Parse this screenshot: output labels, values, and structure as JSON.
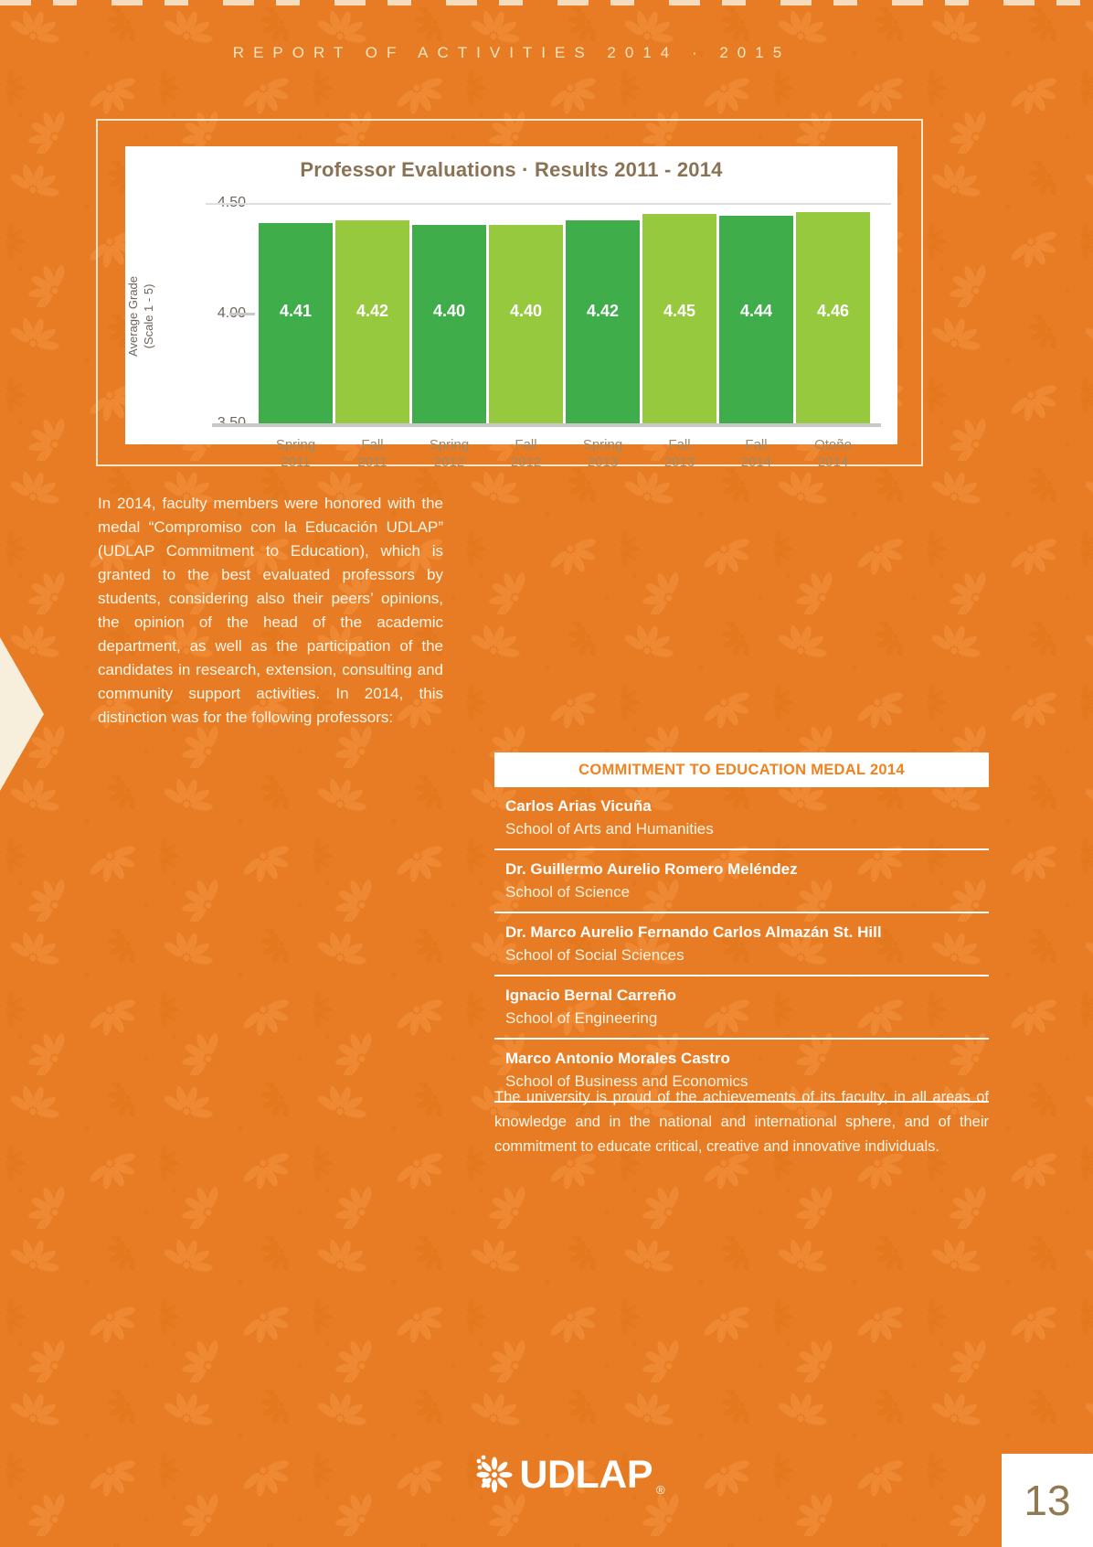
{
  "page": {
    "header": "REPORT OF ACTIVITIES 2014 · 2015",
    "page_number": "13"
  },
  "chart_data": {
    "type": "bar",
    "title": "Professor Evaluations · Results 2011 - 2014",
    "ylabel": [
      "Average Grade",
      "(Scale 1 - 5)"
    ],
    "ylim": [
      3.5,
      4.5
    ],
    "yticks": [
      4.5,
      4.0,
      3.5
    ],
    "ytick_labels": [
      "4.50",
      "4.00",
      "3.50"
    ],
    "grid": "top gridline at 4.50, short tick at 4.00, baseline at 3.50",
    "legend_position": "none",
    "categories": [
      {
        "season": "Spring",
        "year": "2011"
      },
      {
        "season": "Fall",
        "year": "2011"
      },
      {
        "season": "Spring",
        "year": "2012"
      },
      {
        "season": "Fall",
        "year": "2012"
      },
      {
        "season": "Spring",
        "year": "2013"
      },
      {
        "season": "Fall",
        "year": "2013"
      },
      {
        "season": "Fall",
        "year": "2014"
      },
      {
        "season": "Otoño",
        "year": "2014"
      }
    ],
    "values": [
      4.41,
      4.42,
      4.4,
      4.4,
      4.42,
      4.45,
      4.44,
      4.46
    ],
    "value_labels": [
      "4.41",
      "4.42",
      "4.40",
      "4.40",
      "4.42",
      "4.45",
      "4.44",
      "4.46"
    ],
    "bar_color_odd": "#3fae4a",
    "bar_color_even": "#96c93e"
  },
  "intro_paragraph": "In 2014, faculty members were honored with the medal “Compromiso con la Educación UDLAP” (UDLAP Commitment to Education), which is granted to the best evaluated professors by students, considering also their peers’ opinions, the opinion of the head of the academic department, as well as the participation of the candidates in research, extension, consulting and community support activities.  In 2014, this distinction was for the following professors:",
  "medal_table": {
    "header": "COMMITMENT TO EDUCATION MEDAL 2014",
    "rows": [
      {
        "name": "Carlos Arias Vicuña",
        "school": "School of Arts and Humanities"
      },
      {
        "name": "Dr. Guillermo Aurelio Romero Meléndez",
        "school": "School of Science"
      },
      {
        "name": "Dr. Marco Aurelio Fernando Carlos Almazán St. Hill",
        "school": "School of Social Sciences"
      },
      {
        "name": "Ignacio Bernal Carreño",
        "school": "School of Engineering"
      },
      {
        "name": "Marco Antonio Morales Castro",
        "school": "School of Business and Economics"
      }
    ]
  },
  "closing_paragraph": "The university is proud of the achievements of its faculty, in all areas of knowledge and in the national and international sphere, and of their commitment to educate critical, creative and innovative individuals.",
  "footer": {
    "logo_text": "UDLAP",
    "registered_mark": "®"
  },
  "colors": {
    "background": "#e87c24",
    "pattern_light": "#f5933f",
    "pattern_dark": "#db6f15",
    "cream": "#f3e6c0",
    "chart_title": "#8a7355",
    "axis_text": "#6e655b",
    "xlabel_text": "#9d8a68",
    "bar_green_dark": "#3fae4a",
    "bar_green_light": "#96c93e",
    "table_header_text": "#f0821f",
    "page_number_text": "#8f7a52"
  }
}
